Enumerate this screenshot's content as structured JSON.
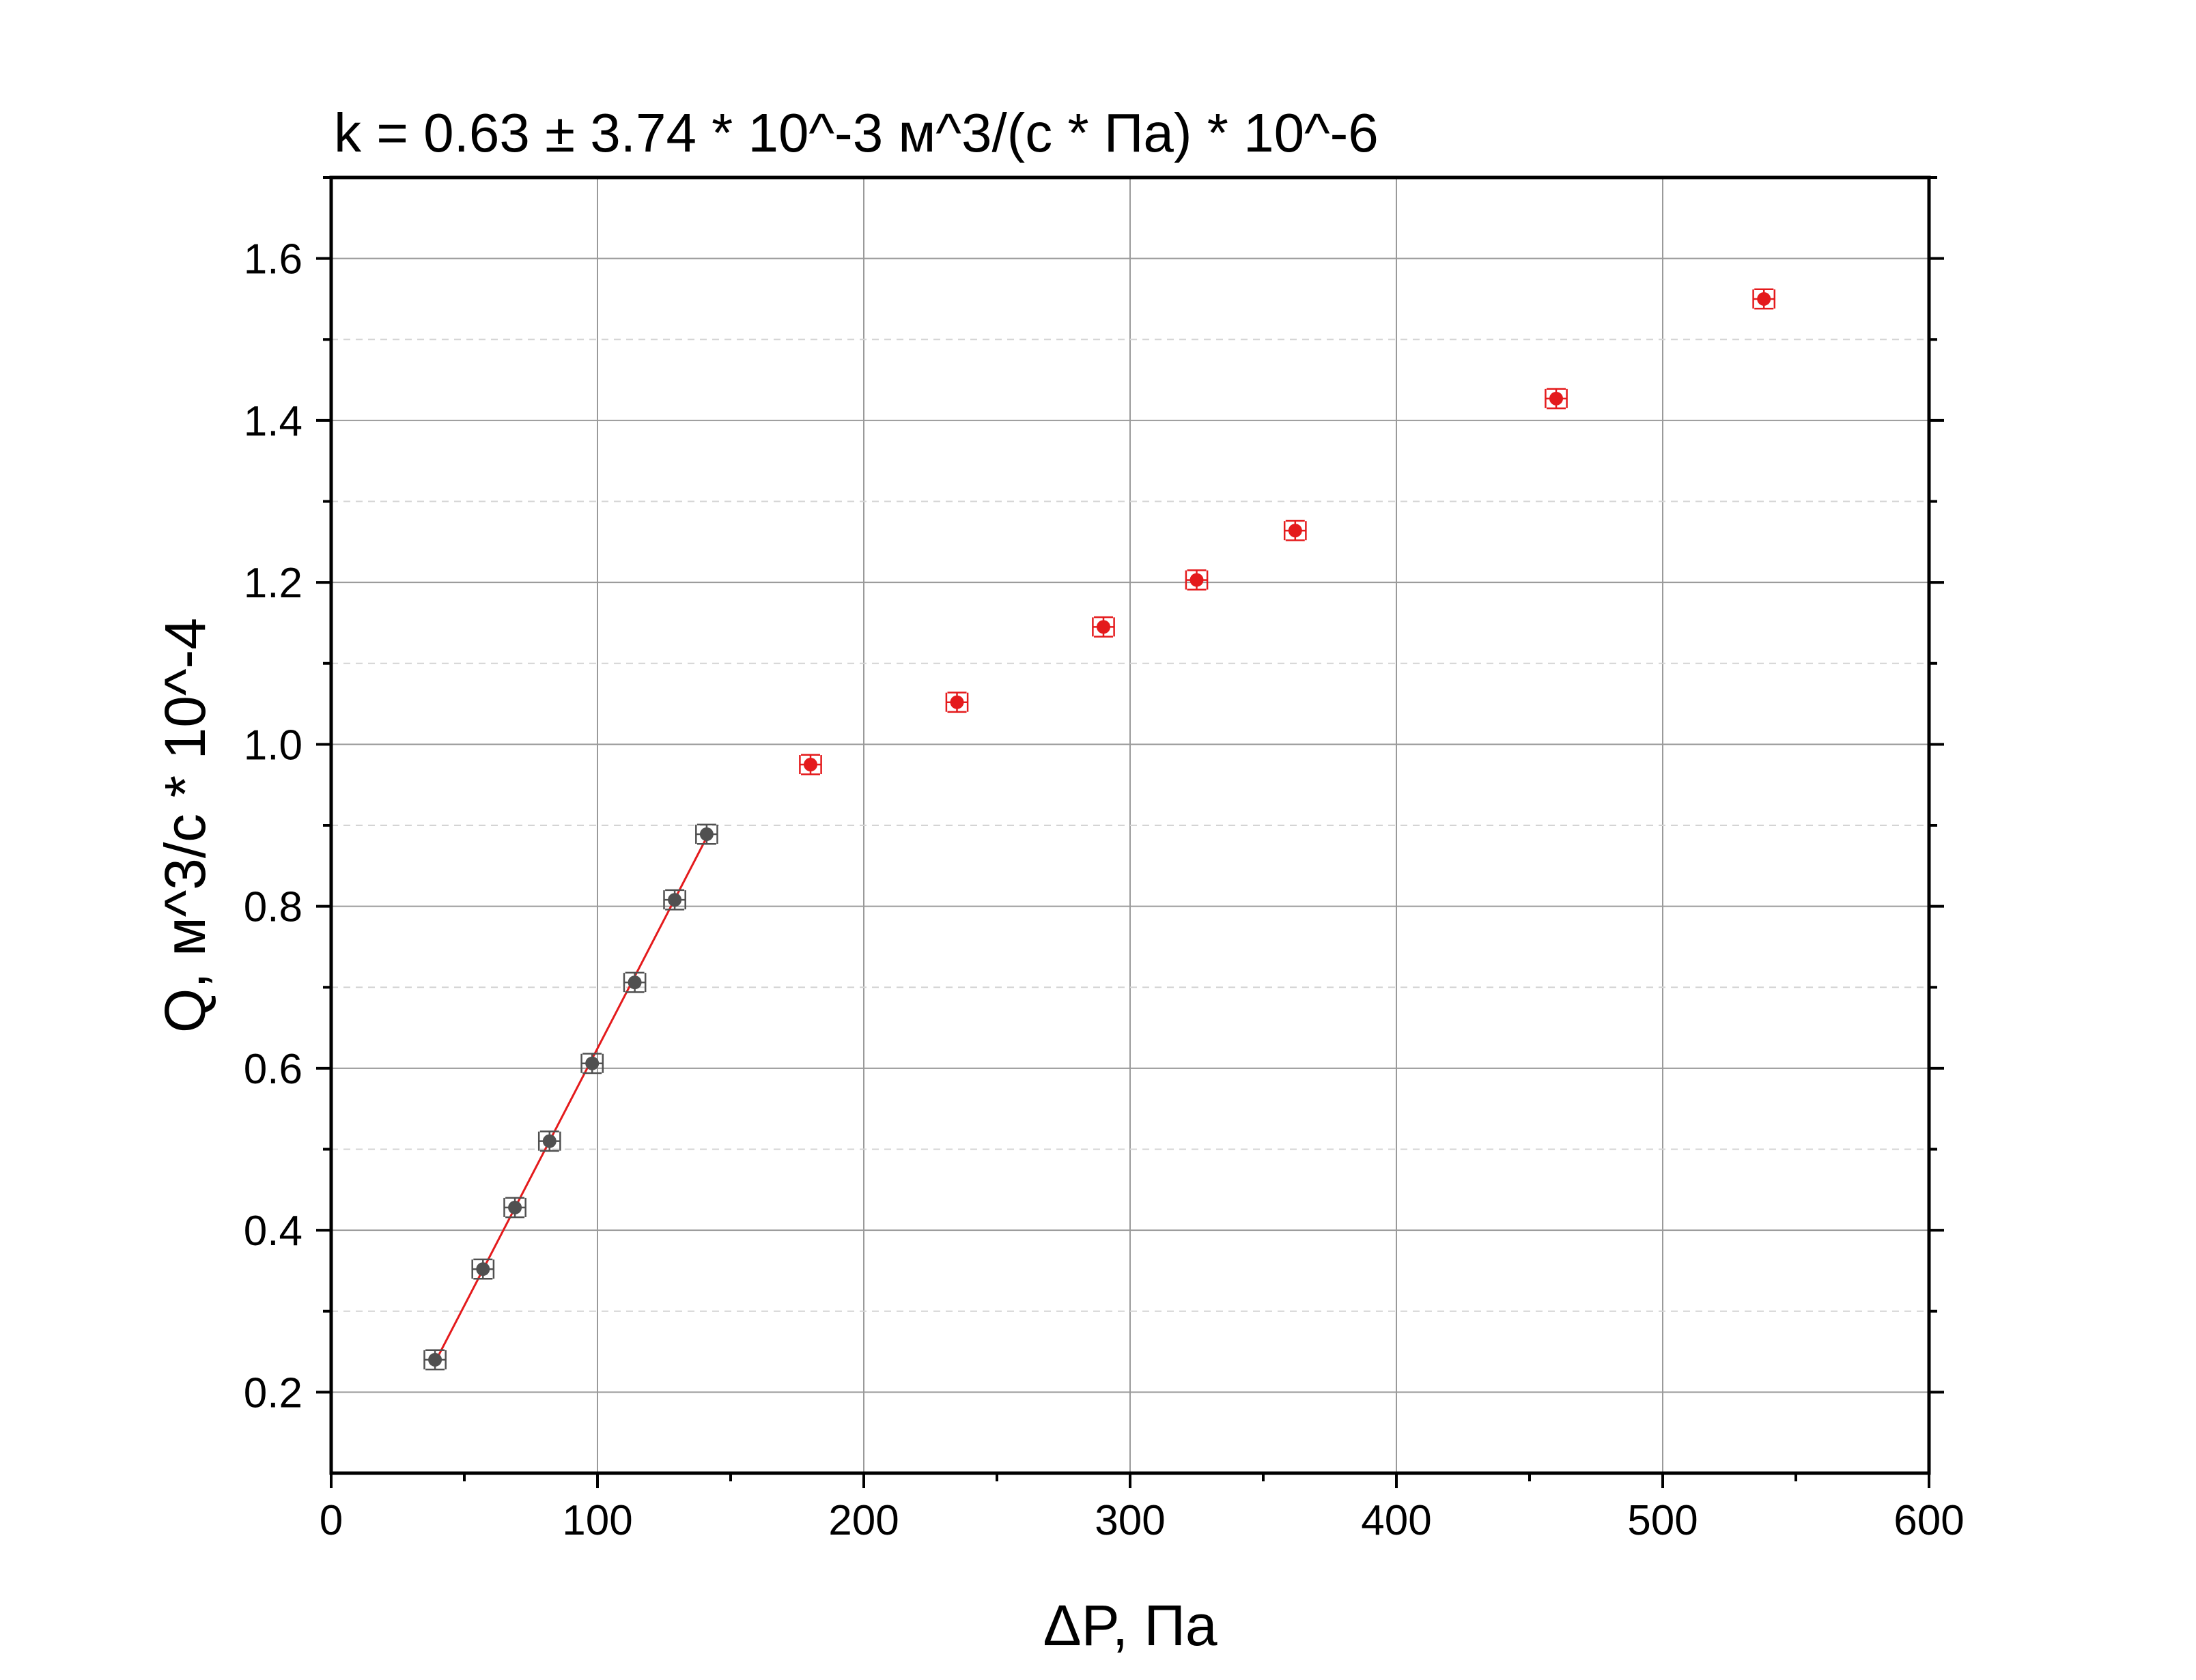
{
  "chart_data": {
    "type": "scatter",
    "title": "k = 0.63 ± 3.74 * 10^-3 м^3/(с * Па) * 10^-6",
    "xlabel": "ΔP, Па",
    "ylabel": "Q, м^3/с * 10^-4",
    "xlim": [
      0,
      600
    ],
    "ylim": [
      0.1,
      1.7
    ],
    "x_ticks": [
      "0",
      "100",
      "200",
      "300",
      "400",
      "500",
      "600"
    ],
    "y_ticks": [
      "0.2",
      "0.4",
      "0.6",
      "0.8",
      "1.0",
      "1.2",
      "1.4",
      "1.6"
    ],
    "grid": true,
    "series": [
      {
        "color": "#505050",
        "x": [
          39,
          57,
          69,
          82,
          98,
          114,
          129,
          141
        ],
        "y": [
          0.24,
          0.352,
          0.428,
          0.51,
          0.606,
          0.706,
          0.808,
          0.889
        ],
        "x_err": 4,
        "y_err": 0.012
      },
      {
        "color": "#e41a1c",
        "x": [
          180,
          235,
          290,
          325,
          362,
          460,
          538
        ],
        "y": [
          0.975,
          1.052,
          1.145,
          1.203,
          1.264,
          1.427,
          1.55
        ],
        "x_err": 4,
        "y_err": 0.012
      }
    ],
    "fit_line": {
      "color": "#e41a1c",
      "x": [
        39,
        141
      ],
      "y": [
        0.237,
        0.885
      ]
    }
  }
}
